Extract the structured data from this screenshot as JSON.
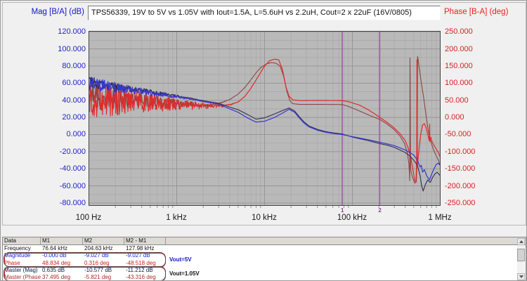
{
  "header": {
    "left_axis_label": "Mag [B/A] (dB)",
    "title": "TPS56339, 19V to 5V vs 1.05V with Iout=1.5A, L=5.6uH vs 2.2uH, Cout=2 x 22uF (16V/0805)",
    "right_axis_label": "Phase [B-A] (deg)"
  },
  "chart_data": {
    "type": "line",
    "title": "TPS56339, 19V to 5V vs 1.05V with Iout=1.5A, L=5.6uH vs 2.2uH, Cout=2 x 22uF (16V/0805)",
    "x_axis": {
      "scale": "log",
      "min_hz": 100,
      "max_hz": 1000000,
      "tick_labels": [
        "100 Hz",
        "1 kHz",
        "10 kHz",
        "100 kHz",
        "1 MHz"
      ]
    },
    "y_left": {
      "label": "Mag [B/A] (dB)",
      "min": -80,
      "max": 120,
      "step": 20,
      "color": "#2121c4",
      "tick_labels": [
        "120.000",
        "100.000",
        "80.000",
        "60.000",
        "40.000",
        "20.000",
        "0.000",
        "-20.000",
        "-40.000",
        "-60.000",
        "-80.000"
      ]
    },
    "y_right": {
      "label": "Phase [B-A] (deg)",
      "min": -250,
      "max": 250,
      "step": 50,
      "color": "#d42222",
      "tick_labels": [
        "250.000",
        "200.000",
        "150.000",
        "100.000",
        "50.000",
        "0.000",
        "-50.000",
        "-100.000",
        "-150.000",
        "-200.000",
        "-250.000"
      ]
    },
    "grid": true,
    "plot_bg": "#b9b9b9",
    "grid_major": "#969696",
    "grid_minor": "#a8a8a8",
    "marker_color": "#9c64a0",
    "markers": [
      {
        "id": "1",
        "freq_hz": 76640
      },
      {
        "id": "2",
        "freq_hz": 204630
      }
    ],
    "series": [
      {
        "id": "phase-1p05v",
        "name": "Master (Phase) Vout=1.05V",
        "axis": "right",
        "color": "#8f4444",
        "width": 1.1,
        "noise": {
          "fmax": 5000,
          "amp": 40,
          "pow": 1.4,
          "seed": 11
        },
        "points": [
          [
            100,
            58
          ],
          [
            300,
            50
          ],
          [
            700,
            44
          ],
          [
            1000,
            41
          ],
          [
            1500,
            37
          ],
          [
            2000,
            35
          ],
          [
            2500,
            36
          ],
          [
            3000,
            40
          ],
          [
            4000,
            52
          ],
          [
            5000,
            68
          ],
          [
            6000,
            88
          ],
          [
            7000,
            110
          ],
          [
            8000,
            130
          ],
          [
            9000,
            145
          ],
          [
            10500,
            156
          ],
          [
            12000,
            160
          ],
          [
            13500,
            158
          ],
          [
            15000,
            150
          ],
          [
            16500,
            120
          ],
          [
            18000,
            75
          ],
          [
            19500,
            48
          ],
          [
            21000,
            40
          ],
          [
            25000,
            38
          ],
          [
            40000,
            38
          ],
          [
            60000,
            37.8
          ],
          [
            76640,
            37.5
          ],
          [
            90000,
            32
          ],
          [
            110000,
            23
          ],
          [
            130000,
            15
          ],
          [
            160000,
            5
          ],
          [
            204630,
            -5.8
          ],
          [
            250000,
            -20
          ],
          [
            300000,
            -36
          ],
          [
            350000,
            -55
          ],
          [
            390000,
            -75
          ],
          [
            420000,
            -100
          ],
          [
            440000,
            -135
          ],
          [
            447000,
            -168
          ],
          [
            450000,
            -185
          ],
          [
            452500,
            174
          ],
          [
            455000,
            120
          ],
          [
            457500,
            -60
          ],
          [
            460000,
            -150
          ],
          [
            475000,
            -168
          ],
          [
            495000,
            -182
          ],
          [
            515000,
            -192
          ],
          [
            535000,
            -188
          ],
          [
            548000,
            -100
          ],
          [
            552000,
            178
          ],
          [
            560000,
            170
          ],
          [
            580000,
            140
          ],
          [
            610000,
            100
          ],
          [
            650000,
            55
          ],
          [
            690000,
            5
          ],
          [
            730000,
            -38
          ],
          [
            780000,
            -70
          ],
          [
            840000,
            -95
          ],
          [
            900000,
            -112
          ],
          [
            950000,
            -124
          ],
          [
            1000000,
            -140
          ]
        ]
      },
      {
        "id": "phase-5v",
        "name": "Phase Vout=5V",
        "axis": "right",
        "color": "#df2b2b",
        "width": 1.2,
        "noise": {
          "fmax": 6000,
          "amp": 58,
          "pow": 1.4,
          "seed": 3
        },
        "points": [
          [
            100,
            55
          ],
          [
            300,
            48
          ],
          [
            700,
            42
          ],
          [
            1000,
            38
          ],
          [
            1500,
            35
          ],
          [
            2000,
            34
          ],
          [
            3000,
            33
          ],
          [
            4000,
            36
          ],
          [
            5000,
            45
          ],
          [
            6000,
            62
          ],
          [
            7000,
            85
          ],
          [
            8500,
            120
          ],
          [
            10000,
            150
          ],
          [
            11500,
            166
          ],
          [
            13000,
            170
          ],
          [
            14500,
            168
          ],
          [
            16000,
            140
          ],
          [
            17500,
            90
          ],
          [
            19000,
            62
          ],
          [
            21000,
            51
          ],
          [
            25000,
            49
          ],
          [
            40000,
            49.5
          ],
          [
            60000,
            49.3
          ],
          [
            76640,
            48.8
          ],
          [
            90000,
            46
          ],
          [
            120000,
            36
          ],
          [
            150000,
            23
          ],
          [
            180000,
            10
          ],
          [
            204630,
            0.3
          ],
          [
            250000,
            -15
          ],
          [
            300000,
            -31
          ],
          [
            350000,
            -48
          ],
          [
            400000,
            -68
          ],
          [
            430000,
            -88
          ],
          [
            460000,
            -115
          ],
          [
            480000,
            -140
          ],
          [
            500000,
            -168
          ],
          [
            515000,
            -185
          ],
          [
            530000,
            -188
          ],
          [
            540000,
            -120
          ],
          [
            543000,
            168
          ],
          [
            546000,
            100
          ],
          [
            549000,
            -140
          ],
          [
            560000,
            -120
          ],
          [
            580000,
            -80
          ],
          [
            600000,
            -50
          ],
          [
            630000,
            -22
          ],
          [
            660000,
            -18
          ],
          [
            690000,
            -30
          ],
          [
            720000,
            -48
          ],
          [
            750000,
            -68
          ],
          [
            758000,
            -20
          ],
          [
            762000,
            -70
          ],
          [
            780000,
            -58
          ],
          [
            810000,
            -72
          ],
          [
            850000,
            -82
          ],
          [
            900000,
            -92
          ],
          [
            950000,
            -102
          ],
          [
            1000000,
            -116
          ]
        ]
      },
      {
        "id": "mag-1p05v",
        "name": "Master (Mag) Vout=1.05V",
        "axis": "left",
        "color": "#2e2e55",
        "width": 1.1,
        "noise": {
          "fmax": 2500,
          "amp": 7,
          "pow": 1.4,
          "seed": 17
        },
        "points": [
          [
            100,
            61
          ],
          [
            200,
            56
          ],
          [
            400,
            51
          ],
          [
            700,
            47.5
          ],
          [
            1000,
            45
          ],
          [
            1500,
            42
          ],
          [
            2000,
            39.5
          ],
          [
            3000,
            36.5
          ],
          [
            4000,
            32
          ],
          [
            5000,
            29
          ],
          [
            6500,
            23
          ],
          [
            8000,
            18
          ],
          [
            10000,
            19.5
          ],
          [
            13000,
            24
          ],
          [
            16000,
            28
          ],
          [
            19000,
            31
          ],
          [
            22000,
            27.5
          ],
          [
            25000,
            20.5
          ],
          [
            28000,
            15
          ],
          [
            32000,
            10
          ],
          [
            40000,
            6
          ],
          [
            50000,
            3.3
          ],
          [
            60000,
            2
          ],
          [
            76640,
            0.635
          ],
          [
            100000,
            -3
          ],
          [
            150000,
            -7
          ],
          [
            204630,
            -10.577
          ],
          [
            250000,
            -12.5
          ],
          [
            300000,
            -15
          ],
          [
            400000,
            -21
          ],
          [
            450000,
            -25
          ],
          [
            500000,
            -30
          ],
          [
            550000,
            -36
          ],
          [
            590000,
            -48
          ],
          [
            615000,
            -60
          ],
          [
            640000,
            -66
          ],
          [
            680000,
            -58
          ],
          [
            720000,
            -53
          ],
          [
            770000,
            -56
          ],
          [
            820000,
            -50
          ],
          [
            870000,
            -46
          ],
          [
            920000,
            -44
          ],
          [
            1000000,
            -48
          ]
        ]
      },
      {
        "id": "mag-5v",
        "name": "Magnitude Vout=5V",
        "axis": "left",
        "color": "#3636d0",
        "width": 1.2,
        "noise": {
          "fmax": 2500,
          "amp": 8.5,
          "pow": 1.4,
          "seed": 5
        },
        "points": [
          [
            100,
            60
          ],
          [
            200,
            55
          ],
          [
            400,
            50
          ],
          [
            700,
            46.5
          ],
          [
            1000,
            44
          ],
          [
            1500,
            41
          ],
          [
            2000,
            38.5
          ],
          [
            3000,
            35.5
          ],
          [
            4000,
            30
          ],
          [
            5000,
            26
          ],
          [
            6500,
            19
          ],
          [
            8000,
            14.5
          ],
          [
            10000,
            15.5
          ],
          [
            13000,
            20
          ],
          [
            16000,
            25
          ],
          [
            19000,
            29.5
          ],
          [
            22000,
            26
          ],
          [
            25000,
            19
          ],
          [
            28000,
            13.5
          ],
          [
            32000,
            9
          ],
          [
            40000,
            5
          ],
          [
            50000,
            2.5
          ],
          [
            60000,
            1.3
          ],
          [
            76640,
            0
          ],
          [
            100000,
            -2.5
          ],
          [
            150000,
            -6
          ],
          [
            204630,
            -9.027
          ],
          [
            250000,
            -11
          ],
          [
            300000,
            -13
          ],
          [
            400000,
            -18
          ],
          [
            450000,
            -21
          ],
          [
            500000,
            -24
          ],
          [
            550000,
            -30
          ],
          [
            590000,
            -38
          ],
          [
            610000,
            -36
          ],
          [
            630000,
            -44
          ],
          [
            660000,
            -41
          ],
          [
            700000,
            -48
          ],
          [
            755000,
            -53
          ],
          [
            800000,
            -46
          ],
          [
            850000,
            -40
          ],
          [
            900000,
            -35
          ],
          [
            950000,
            -33.5
          ],
          [
            1000000,
            -36
          ]
        ]
      }
    ]
  },
  "table": {
    "columns": [
      "Data",
      "M1",
      "M2",
      "M2 - M1",
      ""
    ],
    "rows": [
      {
        "label": "Frequency",
        "m1": "76.64 kHz",
        "m2": "204.63 kHz",
        "delta": "127.98 kHz",
        "color": "#111111"
      },
      {
        "label": "Magnitude",
        "m1": "-0.000 dB",
        "m2": "-9.027 dB",
        "delta": "-9.027 dB",
        "color": "#2020cc"
      },
      {
        "label": "Phase",
        "m1": "48.834 deg",
        "m2": "0.316 deg",
        "delta": "-48.518 deg",
        "color": "#cc2020"
      },
      {
        "label": "Master (Mag)",
        "m1": "0.635 dB",
        "m2": "-10.577 dB",
        "delta": "-11.212 dB",
        "color": "#16163a"
      },
      {
        "label": "Master (Phase)",
        "m1": "37.495 deg",
        "m2": "-5.821 deg",
        "delta": "-43.316 deg",
        "color": "#b02828"
      }
    ],
    "legend": [
      {
        "label": "Vout=5V",
        "color": "#1414cc",
        "rows": [
          1,
          2
        ]
      },
      {
        "label": "Vout=1.05V",
        "color": "#111111",
        "rows": [
          3,
          4
        ]
      }
    ]
  }
}
